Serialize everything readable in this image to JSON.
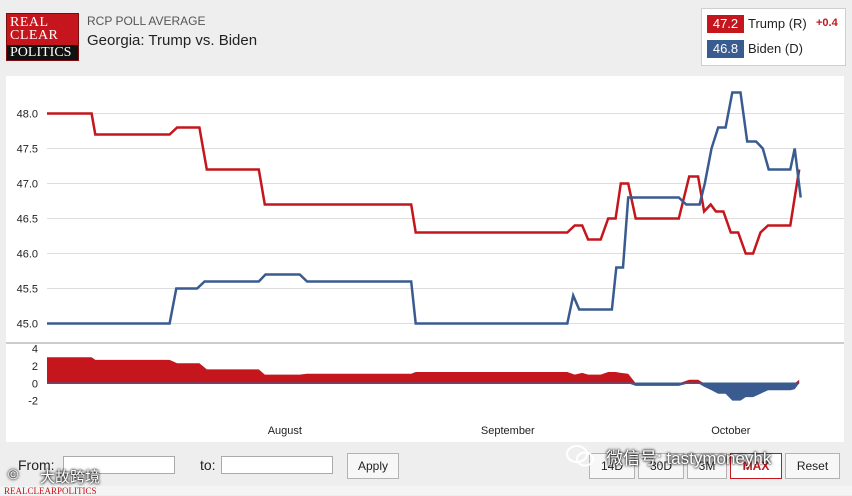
{
  "header": {
    "logo_lines": [
      "REAL",
      "CLEAR",
      "POLITICS"
    ],
    "section_label": "RCP POLL AVERAGE",
    "title": "Georgia: Trump vs. Biden"
  },
  "legend": [
    {
      "value": "47.2",
      "name": "Trump (R)",
      "change": "+0.4",
      "color": "#c4161c"
    },
    {
      "value": "46.8",
      "name": "Biden (D)",
      "change": "",
      "color": "#3a5b8f"
    }
  ],
  "controls": {
    "from_label": "From:",
    "to_label": "to:",
    "apply_label": "Apply",
    "range_buttons": [
      "14D",
      "30D",
      "3M",
      "MAX",
      "Reset"
    ],
    "active_range": "MAX"
  },
  "watermarks": {
    "wechat": "微信号: tastymoneyhk",
    "bottom_left": "大故跨境",
    "bottom_left_prefix": "©",
    "footer": "REALCLEARPOLITICS"
  },
  "colors": {
    "trump": "#c4161c",
    "biden": "#3a5b8f",
    "grid": "#dddddd",
    "axis_text": "#222222"
  },
  "chart_data": [
    {
      "type": "line",
      "title": "Georgia: Trump vs. Biden",
      "x_tick_labels": [
        "August",
        "September",
        "October"
      ],
      "x_tick_positions": [
        32,
        62,
        92
      ],
      "xlim": [
        0,
        104
      ],
      "ylim": [
        44.75,
        48.45
      ],
      "y_ticks": [
        "45.0",
        "45.5",
        "46.0",
        "46.5",
        "47.0",
        "47.5",
        "48.0"
      ],
      "grid": true,
      "series": [
        {
          "name": "Trump (R)",
          "color": "#c4161c",
          "points": [
            [
              0,
              48.0
            ],
            [
              6,
              48.0
            ],
            [
              6.5,
              47.7
            ],
            [
              16.5,
              47.7
            ],
            [
              17.5,
              47.8
            ],
            [
              20.5,
              47.8
            ],
            [
              21.5,
              47.2
            ],
            [
              28.5,
              47.2
            ],
            [
              29.3,
              46.7
            ],
            [
              49,
              46.7
            ],
            [
              49.6,
              46.3
            ],
            [
              70,
              46.3
            ],
            [
              71,
              46.4
            ],
            [
              72,
              46.4
            ],
            [
              72.8,
              46.2
            ],
            [
              74.5,
              46.2
            ],
            [
              75.5,
              46.5
            ],
            [
              76.5,
              46.5
            ],
            [
              77.2,
              47.0
            ],
            [
              78.2,
              47.0
            ],
            [
              79.2,
              46.5
            ],
            [
              85,
              46.5
            ],
            [
              86.4,
              47.1
            ],
            [
              87.6,
              47.1
            ],
            [
              88.4,
              46.6
            ],
            [
              89.3,
              46.7
            ],
            [
              90,
              46.6
            ],
            [
              91,
              46.6
            ],
            [
              92,
              46.3
            ],
            [
              93,
              46.3
            ],
            [
              94,
              46.0
            ],
            [
              95,
              46.0
            ],
            [
              96,
              46.3
            ],
            [
              97,
              46.4
            ],
            [
              100,
              46.4
            ],
            [
              100.6,
              46.8
            ],
            [
              101.2,
              47.2
            ]
          ]
        },
        {
          "name": "Biden (D)",
          "color": "#3a5b8f",
          "points": [
            [
              0,
              45.0
            ],
            [
              16.5,
              45.0
            ],
            [
              17.4,
              45.5
            ],
            [
              20.2,
              45.5
            ],
            [
              21.2,
              45.6
            ],
            [
              28.5,
              45.6
            ],
            [
              29.4,
              45.7
            ],
            [
              34,
              45.7
            ],
            [
              35,
              45.6
            ],
            [
              49,
              45.6
            ],
            [
              49.6,
              45.0
            ],
            [
              70,
              45.0
            ],
            [
              70.8,
              45.4
            ],
            [
              71.6,
              45.2
            ],
            [
              76,
              45.2
            ],
            [
              76.6,
              45.8
            ],
            [
              77.5,
              45.8
            ],
            [
              78.2,
              46.8
            ],
            [
              85,
              46.8
            ],
            [
              86,
              46.7
            ],
            [
              87.8,
              46.7
            ],
            [
              88.5,
              47.0
            ],
            [
              89.4,
              47.5
            ],
            [
              90.3,
              47.8
            ],
            [
              91.3,
              47.8
            ],
            [
              92.2,
              48.3
            ],
            [
              93.3,
              48.3
            ],
            [
              94.2,
              47.6
            ],
            [
              95.4,
              47.6
            ],
            [
              96.3,
              47.5
            ],
            [
              97.1,
              47.2
            ],
            [
              100,
              47.2
            ],
            [
              100.6,
              47.5
            ],
            [
              101.4,
              46.8
            ]
          ]
        }
      ]
    },
    {
      "type": "area",
      "title": "",
      "xlim": [
        0,
        104
      ],
      "ylim": [
        -3.2,
        4.3
      ],
      "y_ticks": [
        "4",
        "2",
        "0",
        "-2"
      ],
      "grid": false,
      "series": [
        {
          "name": "",
          "positive_color": "#c4161c",
          "negative_color": "#3a5b8f",
          "points": [
            [
              0,
              3.0
            ],
            [
              6,
              3.0
            ],
            [
              6.5,
              2.7
            ],
            [
              16.5,
              2.7
            ],
            [
              17.5,
              2.3
            ],
            [
              20.5,
              2.3
            ],
            [
              21.5,
              1.6
            ],
            [
              28.5,
              1.6
            ],
            [
              29.3,
              1.0
            ],
            [
              34,
              1.0
            ],
            [
              35,
              1.1
            ],
            [
              49,
              1.1
            ],
            [
              49.6,
              1.3
            ],
            [
              70,
              1.3
            ],
            [
              71,
              1.0
            ],
            [
              72,
              1.2
            ],
            [
              72.8,
              1.0
            ],
            [
              74.5,
              1.0
            ],
            [
              75.5,
              1.3
            ],
            [
              76.5,
              1.3
            ],
            [
              77.2,
              1.2
            ],
            [
              78.2,
              1.1
            ],
            [
              79.2,
              -0.3
            ],
            [
              85,
              -0.3
            ],
            [
              86.4,
              0.4
            ],
            [
              87.6,
              0.4
            ],
            [
              88.4,
              -0.4
            ],
            [
              89.4,
              -0.8
            ],
            [
              90.3,
              -1.2
            ],
            [
              91.3,
              -1.2
            ],
            [
              92.2,
              -2.0
            ],
            [
              93.3,
              -2.0
            ],
            [
              94,
              -1.6
            ],
            [
              95,
              -1.6
            ],
            [
              96,
              -1.2
            ],
            [
              97,
              -0.8
            ],
            [
              100,
              -0.8
            ],
            [
              100.6,
              -0.7
            ],
            [
              101.2,
              0.4
            ]
          ]
        }
      ]
    }
  ]
}
